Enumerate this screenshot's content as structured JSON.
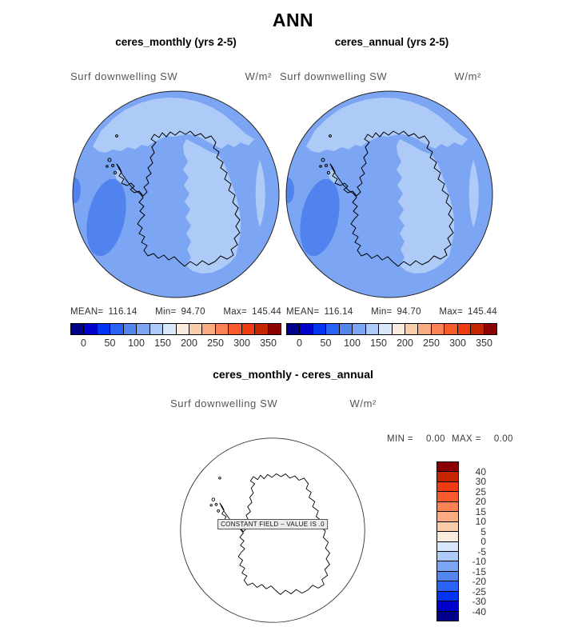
{
  "title": "ANN",
  "colors": {
    "map_bg": "#7CA6F3",
    "map_light": "#AECBF7",
    "map_dark": "#5083EE",
    "diff_bg": "#FFFFFF",
    "coast": "#000000"
  },
  "panels": {
    "monthly": {
      "title": "ceres_monthly (yrs 2-5)",
      "field": "Surf downwelling SW",
      "units": "W/m²",
      "stats": {
        "mean_label": "MEAN=",
        "mean": "116.14",
        "min_label": "Min=",
        "min": "94.70",
        "max_label": "Max=",
        "max": "145.44"
      }
    },
    "annual": {
      "title": "ceres_annual (yrs 2-5)",
      "field": "Surf downwelling SW",
      "units": "W/m²",
      "stats": {
        "mean_label": "MEAN=",
        "mean": "116.14",
        "min_label": "Min=",
        "min": "94.70",
        "max_label": "Max=",
        "max": "145.44"
      }
    },
    "diff": {
      "title": "ceres_monthly - ceres_annual",
      "field": "Surf downwelling SW",
      "units": "W/m²",
      "min_label": "MIN =",
      "min": "0.00",
      "max_label": "MAX =",
      "max": "0.00",
      "constant_note": "CONSTANT FIELD – VALUE IS .0"
    }
  },
  "colorbar_h": {
    "colors": [
      "#00008B",
      "#0000CD",
      "#0033F2",
      "#2A62F5",
      "#5486F0",
      "#7CA6F3",
      "#AECBF7",
      "#D8E8FA",
      "#FAEBDC",
      "#F8CEAA",
      "#FBAB82",
      "#FB8156",
      "#F95A2C",
      "#EE3B12",
      "#C42400",
      "#8B0000"
    ],
    "ticks": [
      "0",
      "50",
      "100",
      "150",
      "200",
      "250",
      "300",
      "350"
    ]
  },
  "colorbar_v": {
    "colors": [
      "#8B0000",
      "#C42400",
      "#EE3B12",
      "#F95A2C",
      "#FB8156",
      "#FBAB82",
      "#F8CEAA",
      "#FAEBDC",
      "#D8E8FA",
      "#AECBF7",
      "#7CA6F3",
      "#5486F0",
      "#2A62F5",
      "#0033F2",
      "#0000CD",
      "#00008B"
    ],
    "ticks": [
      "40",
      "30",
      "25",
      "20",
      "15",
      "10",
      "5",
      "0",
      "-5",
      "-10",
      "-15",
      "-20",
      "-25",
      "-30",
      "-40"
    ]
  },
  "chart_data": [
    {
      "type": "heatmap",
      "subtype": "south-polar contour map",
      "title": "ceres_monthly (yrs 2-5)",
      "variable": "Surf downwelling SW",
      "units": "W/m²",
      "stats": {
        "mean": 116.14,
        "min": 94.7,
        "max": 145.44
      },
      "levels": [
        0,
        25,
        50,
        75,
        100,
        125,
        150,
        175,
        200,
        225,
        250,
        275,
        300,
        325,
        350
      ],
      "tick_labels": [
        0,
        50,
        100,
        150,
        200,
        250,
        300,
        350
      ],
      "palette": [
        "#00008B",
        "#0000CD",
        "#0033F2",
        "#2A62F5",
        "#5486F0",
        "#7CA6F3",
        "#AECBF7",
        "#D8E8FA",
        "#FAEBDC",
        "#F8CEAA",
        "#FBAB82",
        "#FB8156",
        "#F95A2C",
        "#EE3B12",
        "#C42400",
        "#8B0000"
      ],
      "dominant_values": {
        "ocean_most": "100-125",
        "light_patches": "125-150",
        "dark_patch_west": "75-100"
      }
    },
    {
      "type": "heatmap",
      "subtype": "south-polar contour map",
      "title": "ceres_annual (yrs 2-5)",
      "variable": "Surf downwelling SW",
      "units": "W/m²",
      "stats": {
        "mean": 116.14,
        "min": 94.7,
        "max": 145.44
      },
      "levels": [
        0,
        25,
        50,
        75,
        100,
        125,
        150,
        175,
        200,
        225,
        250,
        275,
        300,
        325,
        350
      ],
      "tick_labels": [
        0,
        50,
        100,
        150,
        200,
        250,
        300,
        350
      ],
      "palette": [
        "#00008B",
        "#0000CD",
        "#0033F2",
        "#2A62F5",
        "#5486F0",
        "#7CA6F3",
        "#AECBF7",
        "#D8E8FA",
        "#FAEBDC",
        "#F8CEAA",
        "#FBAB82",
        "#FB8156",
        "#F95A2C",
        "#EE3B12",
        "#C42400",
        "#8B0000"
      ],
      "dominant_values": {
        "ocean_most": "100-125",
        "light_patches": "125-150",
        "dark_patch_west": "75-100"
      }
    },
    {
      "type": "heatmap",
      "subtype": "south-polar difference map",
      "title": "ceres_monthly - ceres_annual",
      "variable": "Surf downwelling SW",
      "units": "W/m²",
      "stats": {
        "min": 0.0,
        "max": 0.0
      },
      "levels": [
        40,
        30,
        25,
        20,
        15,
        10,
        5,
        0,
        -5,
        -10,
        -15,
        -20,
        -25,
        -30,
        -40
      ],
      "palette": [
        "#8B0000",
        "#C42400",
        "#EE3B12",
        "#F95A2C",
        "#FB8156",
        "#FBAB82",
        "#F8CEAA",
        "#FAEBDC",
        "#D8E8FA",
        "#AECBF7",
        "#7CA6F3",
        "#5486F0",
        "#2A62F5",
        "#0033F2",
        "#0000CD",
        "#00008B"
      ],
      "note": "CONSTANT FIELD – VALUE IS .0",
      "field_value": 0.0
    }
  ]
}
